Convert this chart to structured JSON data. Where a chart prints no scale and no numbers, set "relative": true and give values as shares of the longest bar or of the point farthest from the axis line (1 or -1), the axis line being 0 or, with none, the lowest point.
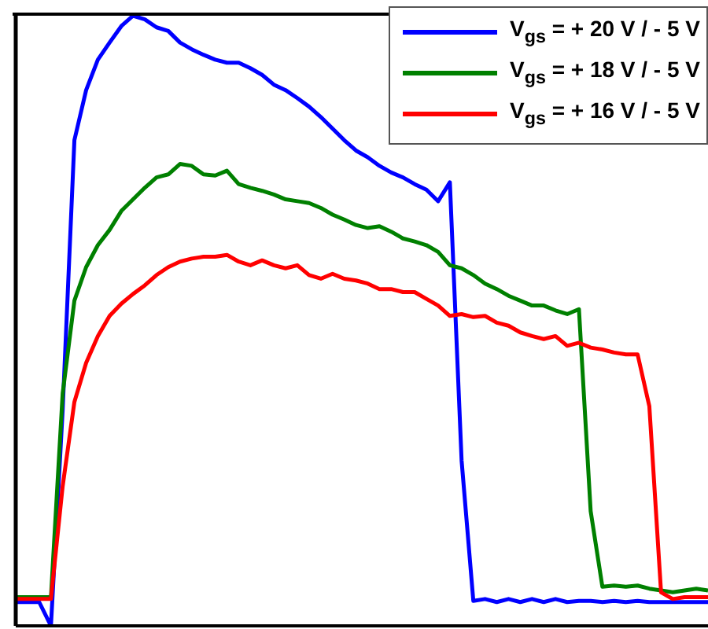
{
  "chart_data": {
    "type": "line",
    "relative": true,
    "grid": false,
    "legend": "top right",
    "marker": "none",
    "line_style": "solid",
    "categories": [
      null,
      null,
      null,
      null,
      null,
      null,
      null,
      null,
      null,
      null,
      null,
      null,
      null,
      null,
      null,
      null,
      null,
      null,
      null,
      null,
      null,
      null,
      null,
      null,
      null,
      null,
      null,
      null,
      null,
      null,
      null,
      null,
      null,
      null,
      null,
      null,
      null,
      null,
      null,
      null,
      null,
      null,
      null,
      null,
      null,
      null,
      null,
      null,
      null,
      null,
      null,
      null,
      null,
      null,
      null,
      null,
      null,
      null,
      null,
      null
    ],
    "series": [
      {
        "name": "V$_{gs}$ = + 20 V / - 5 V",
        "color": "#0000ff",
        "values": [
          0.039,
          0.039,
          0.039,
          0.0,
          0.354,
          0.796,
          0.878,
          0.928,
          0.956,
          0.983,
          1.0,
          0.994,
          0.981,
          0.975,
          0.956,
          0.945,
          0.936,
          0.928,
          0.923,
          0.923,
          0.914,
          0.903,
          0.887,
          0.878,
          0.865,
          0.851,
          0.834,
          0.815,
          0.796,
          0.779,
          0.768,
          0.754,
          0.743,
          0.735,
          0.724,
          0.715,
          0.696,
          0.727,
          0.271,
          0.041,
          0.044,
          0.039,
          0.044,
          0.039,
          0.044,
          0.039,
          0.044,
          0.039,
          0.041,
          0.041,
          0.039,
          0.041,
          0.039,
          0.041,
          0.039,
          0.039,
          0.039,
          0.039,
          0.039,
          0.039
        ]
      },
      {
        "name": "V$_{gs}$ = + 18 V / - 5 V",
        "color": "#008000",
        "values": [
          0.047,
          0.047,
          0.047,
          0.047,
          0.381,
          0.533,
          0.588,
          0.624,
          0.649,
          0.68,
          0.699,
          0.718,
          0.735,
          0.74,
          0.757,
          0.754,
          0.74,
          0.738,
          0.746,
          0.724,
          0.718,
          0.713,
          0.707,
          0.699,
          0.696,
          0.693,
          0.685,
          0.674,
          0.666,
          0.657,
          0.652,
          0.655,
          0.646,
          0.635,
          0.63,
          0.624,
          0.613,
          0.591,
          0.586,
          0.575,
          0.561,
          0.552,
          0.541,
          0.533,
          0.525,
          0.525,
          0.517,
          0.511,
          0.519,
          0.188,
          0.064,
          0.066,
          0.064,
          0.066,
          0.061,
          0.058,
          0.055,
          0.058,
          0.061,
          0.058
        ]
      },
      {
        "name": "V$_{gs}$ = + 16 V / - 5 V",
        "color": "#ff0000",
        "values": [
          0.044,
          0.044,
          0.044,
          0.044,
          0.229,
          0.367,
          0.431,
          0.475,
          0.508,
          0.528,
          0.544,
          0.558,
          0.575,
          0.588,
          0.597,
          0.602,
          0.605,
          0.605,
          0.608,
          0.597,
          0.591,
          0.599,
          0.591,
          0.586,
          0.591,
          0.575,
          0.569,
          0.577,
          0.569,
          0.566,
          0.561,
          0.552,
          0.552,
          0.547,
          0.547,
          0.536,
          0.525,
          0.508,
          0.511,
          0.506,
          0.508,
          0.497,
          0.492,
          0.481,
          0.475,
          0.47,
          0.475,
          0.459,
          0.464,
          0.456,
          0.453,
          0.448,
          0.445,
          0.445,
          0.36,
          0.055,
          0.044,
          0.047,
          0.047,
          0.047
        ]
      }
    ]
  }
}
